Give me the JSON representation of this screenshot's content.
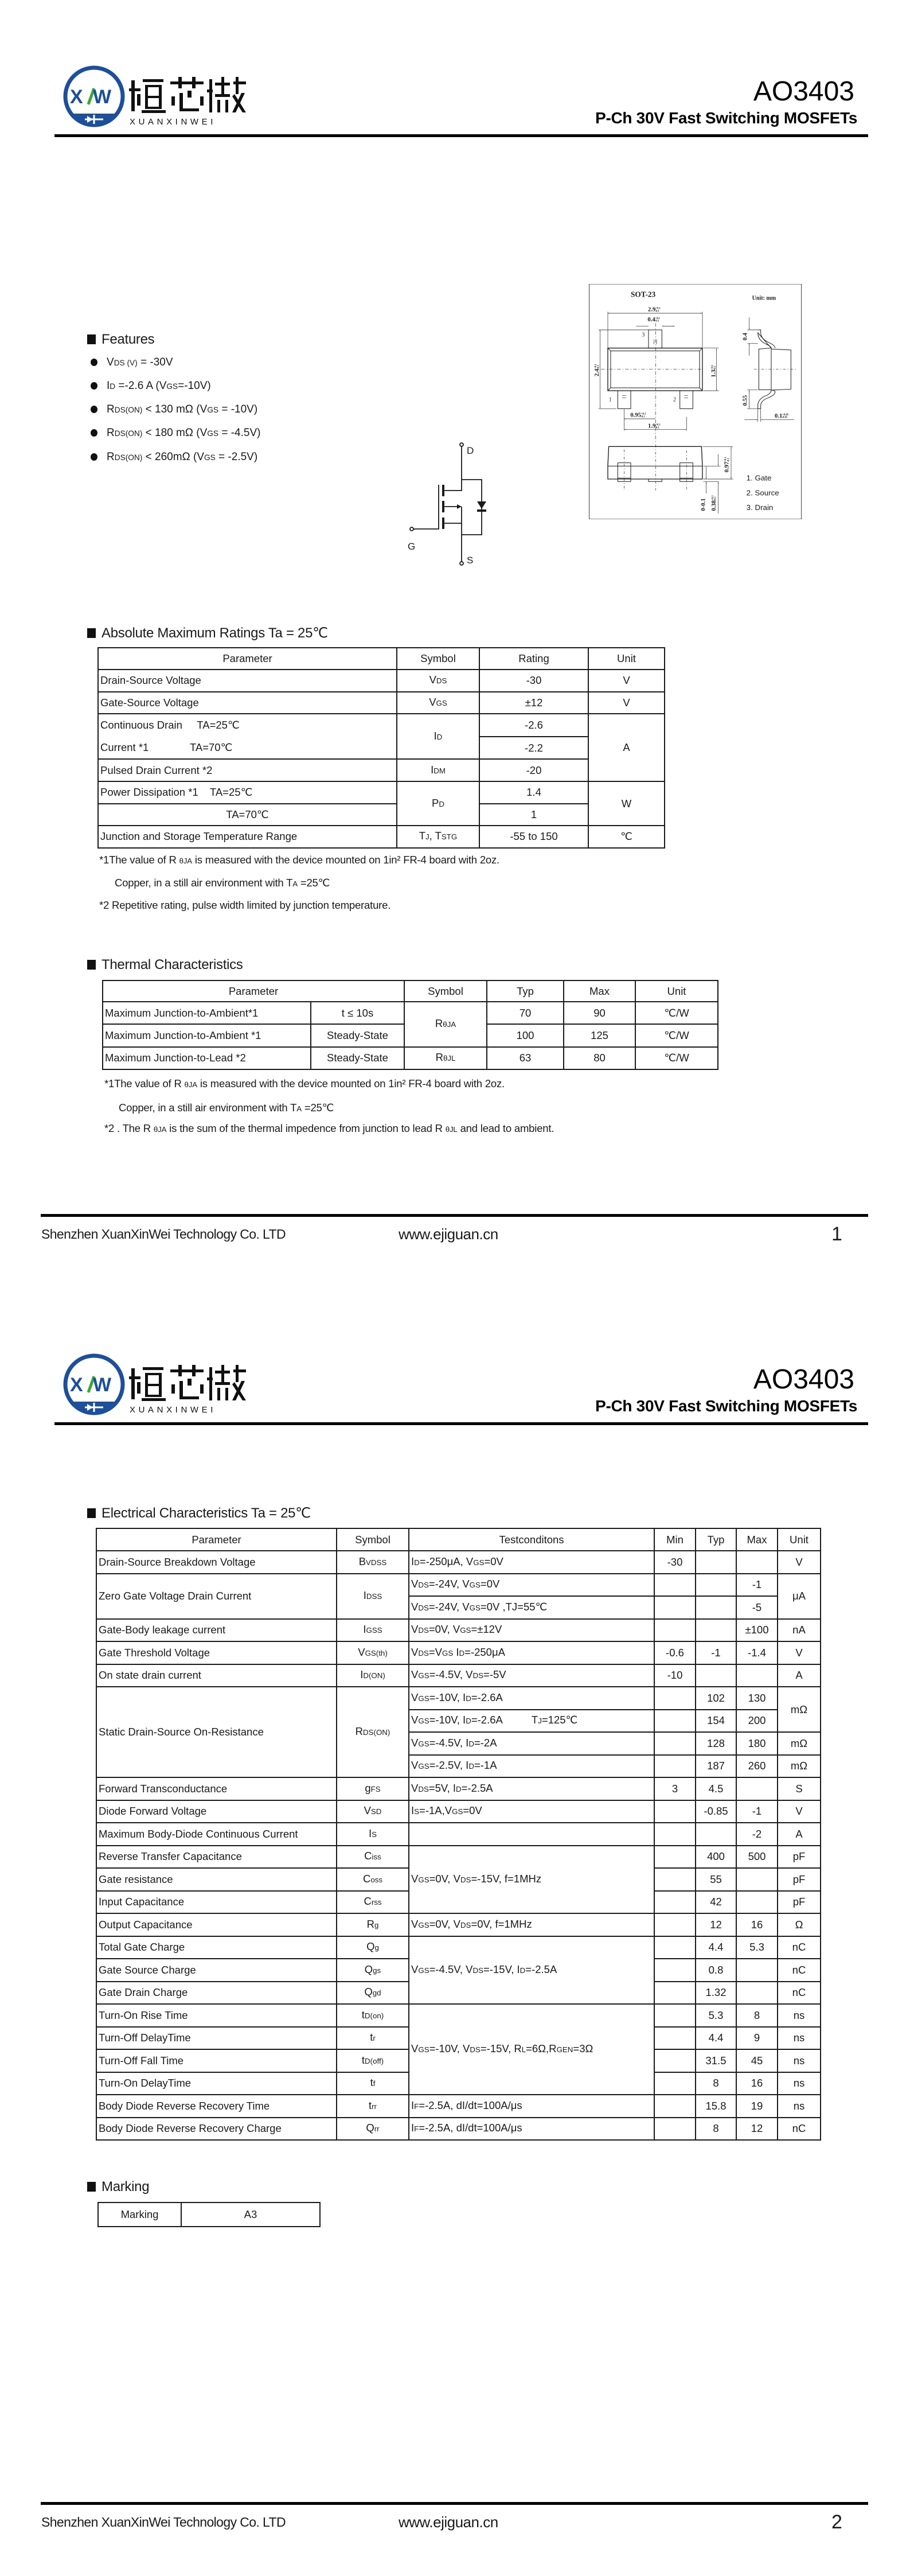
{
  "header": {
    "logo_mark": "XW",
    "logo_cn": "烜芯微",
    "logo_en": "XUANXINWEI",
    "part": "AO3403",
    "subtitle": "P-Ch 30V Fast Switching MOSFETs"
  },
  "colors": {
    "logo_blue": "#1d4f9a",
    "logo_green": "#3aa935",
    "ink": "#1a1a1a"
  },
  "features": {
    "title": "Features",
    "items": [
      [
        "V",
        [
          "DS (V)"
        ],
        " = -30V"
      ],
      [
        "I",
        [
          "D"
        ],
        " =-2.6 A (V",
        [
          "GS"
        ],
        "=-10V)"
      ],
      [
        "R",
        [
          "DS(ON)"
        ],
        " < 130 mΩ  (V",
        [
          "GS"
        ],
        " = -10V)"
      ],
      [
        "R",
        [
          "DS(ON)"
        ],
        " < 180 mΩ  (V",
        [
          "GS"
        ],
        " = -4.5V)"
      ],
      [
        "R",
        [
          "DS(ON)"
        ],
        " < 260mΩ  (V",
        [
          "GS"
        ],
        " = -2.5V)"
      ]
    ]
  },
  "schematic": {
    "drain": "D",
    "gate": "G",
    "source": "S"
  },
  "package": {
    "name": "SOT-23",
    "unit": "Unit: mm",
    "pins": [
      "1",
      "2",
      "3"
    ],
    "legend": [
      "1. Gate",
      "2. Source",
      "3. Drain"
    ],
    "dims": [
      {
        "v": "2.9",
        "tu": "+0.1",
        "tl": "-0.1"
      },
      {
        "v": "0.4",
        "tu": "+0.1",
        "tl": "-0.1"
      },
      {
        "v": "2.4",
        "tu": "+0.1",
        "tl": "-0.1"
      },
      {
        "v": "1.3",
        "tu": "+0.1",
        "tl": "-0.1"
      },
      {
        "v": "0.95",
        "tu": "+0.1",
        "tl": "-0.1"
      },
      {
        "v": "1.9",
        "tu": "+0.1",
        "tl": "-0.1"
      },
      {
        "v": "0.4",
        "tu": "",
        "tl": ""
      },
      {
        "v": "0.55",
        "tu": "",
        "tl": ""
      },
      {
        "v": "0.1",
        "tu": "+0.05",
        "tl": "-0.01"
      },
      {
        "v": "0.97",
        "tu": "+0.1",
        "tl": "-0.1"
      },
      {
        "v": "0-0.1",
        "tu": "",
        "tl": ""
      },
      {
        "v": "0.38",
        "tu": "+0.1",
        "tl": "-0.1"
      }
    ]
  },
  "abs_max": {
    "title": "Absolute Maximum Ratings Ta = 25℃",
    "headers": [
      "Parameter",
      "Symbol",
      "Rating",
      "Unit"
    ],
    "rows": [
      [
        "Drain-Source Voltage",
        [
          "V",
          [
            "DS"
          ]
        ],
        "-30",
        "V"
      ],
      [
        "Gate-Source Voltage",
        [
          "V",
          [
            "GS"
          ]
        ],
        "±12",
        "V"
      ],
      [
        {
          "lines": [
            "Continuous Drain     TA=25℃",
            "Current *1              TA=70℃"
          ],
          "rs": 2
        },
        {
          "v": [
            "I",
            [
              "D"
            ]
          ],
          "rs": 2
        },
        "-2.6",
        {
          "v": "A",
          "rs": 3
        }
      ],
      [
        "-2.2"
      ],
      [
        "Pulsed Drain Current *2",
        [
          "I",
          [
            "DM"
          ]
        ],
        "-20"
      ],
      [
        "Power Dissipation *1    TA=25℃",
        {
          "v": [
            "P",
            [
              "D"
            ]
          ],
          "rs": 2
        },
        "1.4",
        {
          "v": "W",
          "rs": 2
        }
      ],
      [
        "TA=70℃",
        "1"
      ],
      [
        "Junction and Storage Temperature Range",
        [
          "T",
          [
            "J"
          ],
          ", T",
          [
            "STG"
          ]
        ],
        "-55 to 150",
        "℃"
      ]
    ],
    "notes": [
      [
        "*1The value of R ",
        [
          "θJA"
        ],
        " is measured with the device mounted on 1in² FR-4 board with 2oz."
      ],
      [
        "Copper, in a still air environment with T",
        [
          "A"
        ],
        " =25℃"
      ],
      [
        "*2 Repetitive rating, pulse width limited by junction temperature."
      ]
    ]
  },
  "thermal": {
    "title": "Thermal Characteristics",
    "headers": [
      {
        "v": "Parameter",
        "cs": 2
      },
      "Symbol",
      "Typ",
      "Max",
      "Unit"
    ],
    "rows": [
      [
        "Maximum Junction-to-Ambient*1",
        "t ≤ 10s",
        {
          "v": [
            "R",
            [
              "θJA"
            ]
          ],
          "rs": 2
        },
        "70",
        "90",
        "℃/W"
      ],
      [
        "Maximum Junction-to-Ambient *1",
        "Steady-State",
        "100",
        "125",
        "℃/W"
      ],
      [
        "Maximum Junction-to-Lead *2",
        "Steady-State",
        [
          "R",
          [
            "θJL"
          ]
        ],
        "63",
        "80",
        "℃/W"
      ]
    ],
    "notes": [
      [
        "*1The value of R ",
        [
          "θJA"
        ],
        " is measured with the device mounted on 1in² FR-4 board with 2oz."
      ],
      [
        "Copper, in a still air environment with T",
        [
          "A"
        ],
        " =25℃"
      ],
      [
        "*2 . The R ",
        [
          "θJA"
        ],
        " is the sum of the thermal impedence from junction to lead R ",
        [
          "θJL"
        ],
        " and lead to ambient."
      ]
    ]
  },
  "electrical": {
    "title": "Electrical Characteristics Ta = 25℃",
    "headers": [
      "Parameter",
      "Symbol",
      "Testconditons",
      "Min",
      "Typ",
      "Max",
      "Unit"
    ],
    "rows": [
      [
        "Drain-Source Breakdown Voltage",
        [
          "B",
          [
            "VDSS"
          ]
        ],
        [
          "I",
          [
            "D"
          ],
          "=-250μA, V",
          [
            "GS"
          ],
          "=0V"
        ],
        "-30",
        "",
        "",
        "V"
      ],
      [
        {
          "v": "Zero Gate Voltage Drain Current",
          "rs": 2
        },
        {
          "v": [
            "I",
            [
              "DSS"
            ]
          ],
          "rs": 2
        },
        [
          "V",
          [
            "DS"
          ],
          "=-24V, V",
          [
            "GS"
          ],
          "=0V"
        ],
        "",
        "",
        "-1",
        {
          "v": "μA",
          "rs": 2
        }
      ],
      [
        [
          "V",
          [
            "DS"
          ],
          "=-24V, V",
          [
            "GS"
          ],
          "=0V ,TJ=55℃"
        ],
        "",
        "",
        "-5"
      ],
      [
        "Gate-Body leakage current",
        [
          "I",
          [
            "GSS"
          ]
        ],
        [
          "V",
          [
            "DS"
          ],
          "=0V, V",
          [
            "GS"
          ],
          "=±12V"
        ],
        "",
        "",
        "±100",
        "nA"
      ],
      [
        "Gate Threshold Voltage",
        [
          "V",
          [
            "GS(th)"
          ]
        ],
        [
          "V",
          [
            "DS"
          ],
          "=V",
          [
            "GS"
          ],
          " I",
          [
            "D"
          ],
          "=-250μA"
        ],
        "-0.6",
        "-1",
        "-1.4",
        "V"
      ],
      [
        "On state drain current",
        [
          "I",
          [
            "D(ON)"
          ]
        ],
        [
          "V",
          [
            "GS"
          ],
          "=-4.5V, V",
          [
            "DS"
          ],
          "=-5V"
        ],
        "-10",
        "",
        "",
        "A"
      ],
      [
        {
          "v": "Static Drain-Source On-Resistance",
          "rs": 4
        },
        {
          "v": [
            "R",
            [
              "DS(ON)"
            ]
          ],
          "rs": 4
        },
        [
          "V",
          [
            "GS"
          ],
          "=-10V, I",
          [
            "D"
          ],
          "=-2.6A"
        ],
        "",
        "102",
        "130",
        {
          "v": "mΩ",
          "rs": 2
        }
      ],
      [
        [
          "V",
          [
            "GS"
          ],
          "=-10V, I",
          [
            "D"
          ],
          "=-2.6A          T",
          [
            "J"
          ],
          "=125℃"
        ],
        "",
        "154",
        "200"
      ],
      [
        [
          "V",
          [
            "GS"
          ],
          "=-4.5V, I",
          [
            "D"
          ],
          "=-2A"
        ],
        "",
        "128",
        "180",
        "mΩ"
      ],
      [
        [
          "V",
          [
            "GS"
          ],
          "=-2.5V, I",
          [
            "D"
          ],
          "=-1A"
        ],
        "",
        "187",
        "260",
        "mΩ"
      ],
      [
        "Forward Transconductance",
        [
          "g",
          [
            "FS"
          ]
        ],
        [
          "V",
          [
            "DS"
          ],
          "=5V, I",
          [
            "D"
          ],
          "=-2.5A"
        ],
        "3",
        "4.5",
        "",
        "S"
      ],
      [
        "Diode Forward Voltage",
        [
          "V",
          [
            "SD"
          ]
        ],
        [
          "I",
          [
            "S"
          ],
          "=-1A,V",
          [
            "GS"
          ],
          "=0V"
        ],
        "",
        "-0.85",
        "-1",
        "V"
      ],
      [
        "Maximum Body-Diode Continuous Current",
        [
          "I",
          [
            "S"
          ]
        ],
        "",
        "",
        "",
        "-2",
        "A"
      ],
      [
        "Reverse Transfer Capacitance",
        [
          "C",
          [
            "iss"
          ]
        ],
        {
          "v": [
            "V",
            [
              "GS"
            ],
            "=0V, V",
            [
              "DS"
            ],
            "=-15V, f=1MHz"
          ],
          "rs": 3
        },
        "",
        "400",
        "500",
        "pF"
      ],
      [
        "Gate resistance",
        [
          "C",
          [
            "oss"
          ]
        ],
        "",
        "55",
        "",
        "pF"
      ],
      [
        "Input Capacitance",
        [
          "C",
          [
            "rss"
          ]
        ],
        "",
        "42",
        "",
        "pF"
      ],
      [
        "Output Capacitance",
        [
          "R",
          [
            "g"
          ]
        ],
        [
          "V",
          [
            "GS"
          ],
          "=0V, V",
          [
            "DS"
          ],
          "=0V, f=1MHz"
        ],
        "",
        "12",
        "16",
        "Ω"
      ],
      [
        "Total Gate Charge",
        [
          "Q",
          [
            "g"
          ]
        ],
        {
          "v": [
            "V",
            [
              "GS"
            ],
            "=-4.5V, V",
            [
              "DS"
            ],
            "=-15V, I",
            [
              "D"
            ],
            "=-2.5A"
          ],
          "rs": 3
        },
        "",
        "4.4",
        "5.3",
        "nC"
      ],
      [
        "Gate Source Charge",
        [
          "Q",
          [
            "gs"
          ]
        ],
        "",
        "0.8",
        "",
        "nC"
      ],
      [
        "Gate Drain Charge",
        [
          "Q",
          [
            "gd"
          ]
        ],
        "",
        "1.32",
        "",
        "nC"
      ],
      [
        "Turn-On Rise Time",
        [
          "t",
          [
            "D(on)"
          ]
        ],
        {
          "v": [
            "V",
            [
              "GS"
            ],
            "=-10V, V",
            [
              "DS"
            ],
            "=-15V, R",
            [
              "L"
            ],
            "=6Ω,R",
            [
              "GEN"
            ],
            "=3Ω"
          ],
          "rs": 4
        },
        "",
        "5.3",
        "8",
        "ns"
      ],
      [
        "Turn-Off DelayTime",
        [
          "t",
          [
            "r"
          ]
        ],
        "",
        "4.4",
        "9",
        "ns"
      ],
      [
        "Turn-Off Fall Time",
        [
          "t",
          [
            "D(off)"
          ]
        ],
        "",
        "31.5",
        "45",
        "ns"
      ],
      [
        "Turn-On DelayTime",
        [
          "t",
          [
            "f"
          ]
        ],
        "",
        "8",
        "16",
        "ns"
      ],
      [
        "Body Diode Reverse Recovery Time",
        [
          "t",
          [
            "rr"
          ]
        ],
        [
          "I",
          [
            "F"
          ],
          "=-2.5A, dI/dt=100A/μs"
        ],
        "",
        "15.8",
        "19",
        "ns"
      ],
      [
        "Body Diode Reverse Recovery Charge",
        [
          "Q",
          [
            "rr"
          ]
        ],
        [
          "I",
          [
            "F"
          ],
          "=-2.5A, dI/dt=100A/μs"
        ],
        "",
        "8",
        "12",
        "nC"
      ]
    ]
  },
  "marking": {
    "title": "Marking",
    "label": "Marking",
    "value": "A3"
  },
  "footer": {
    "company": "Shenzhen XuanXinWei Technology Co. LTD",
    "website": "www.ejiguan.cn",
    "pages": [
      "1",
      "2"
    ]
  }
}
